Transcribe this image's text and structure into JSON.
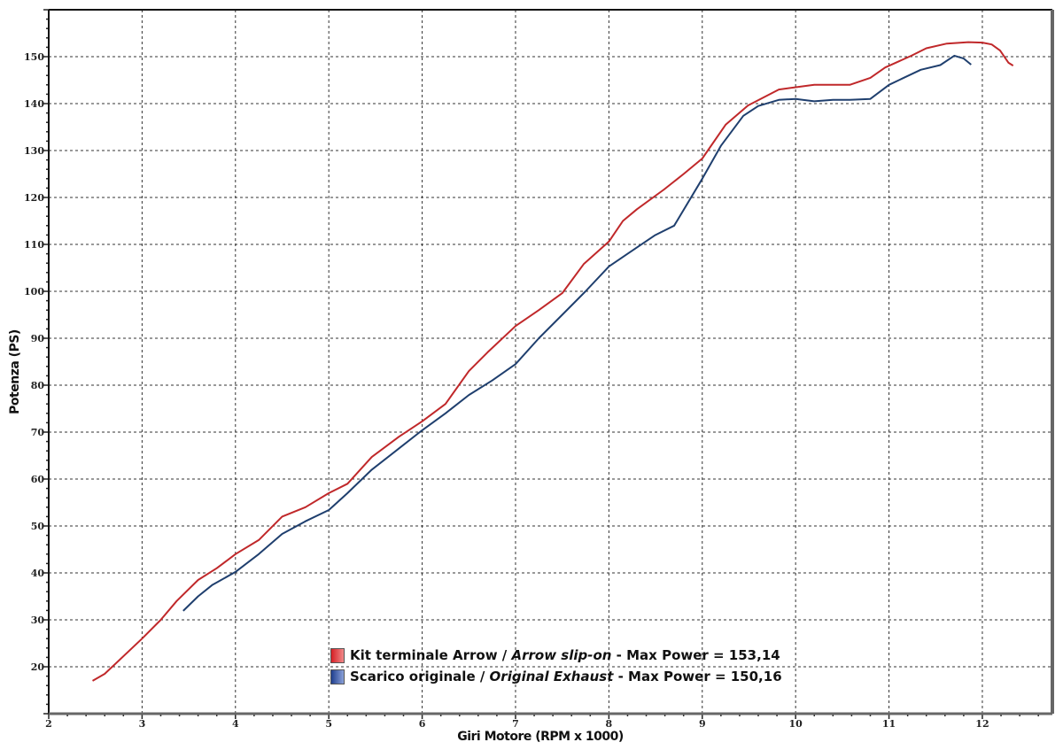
{
  "chart_data": {
    "type": "line",
    "title": "",
    "xlabel": "Giri Motore (RPM x 1000)",
    "ylabel": "Potenza (PS)",
    "xlim": [
      2,
      12.75
    ],
    "ylim": [
      10,
      160
    ],
    "xticks": [
      2,
      3,
      4,
      5,
      6,
      7,
      8,
      9,
      10,
      11,
      12
    ],
    "yticks": [
      20,
      30,
      40,
      50,
      60,
      70,
      80,
      90,
      100,
      110,
      120,
      130,
      140,
      150
    ],
    "grid": true,
    "legend_position": "bottom-center",
    "series": [
      {
        "name": "Kit terminale Arrow / Arrow slip-on - Max Power = 153,14",
        "legend_parts": [
          "Kit terminale Arrow / ",
          "Arrow slip-on",
          " - Max Power = 153,14"
        ],
        "color": "#c0282a",
        "x": [
          2.47,
          2.6,
          3.0,
          3.2,
          3.37,
          3.6,
          3.8,
          4.0,
          4.25,
          4.5,
          4.75,
          5.0,
          5.2,
          5.46,
          5.75,
          6.0,
          6.25,
          6.5,
          6.7,
          7.0,
          7.25,
          7.5,
          7.73,
          8.0,
          8.15,
          8.3,
          8.59,
          8.8,
          9.0,
          9.25,
          9.49,
          9.82,
          10.2,
          10.58,
          10.8,
          10.96,
          11.24,
          11.4,
          11.62,
          11.85,
          12.0,
          12.1,
          12.19,
          12.28,
          12.33
        ],
        "y": [
          17,
          18.5,
          26,
          30,
          34,
          38.5,
          41,
          44,
          47,
          52,
          54,
          57,
          59,
          64.7,
          69,
          72.3,
          76,
          83,
          87,
          92.6,
          96,
          99.6,
          105.8,
          110.6,
          115,
          117.5,
          121.7,
          125,
          128.3,
          135.5,
          139.6,
          143,
          144,
          144,
          145.5,
          147.7,
          150.2,
          151.8,
          152.8,
          153.1,
          153,
          152.6,
          151.3,
          148.7,
          148.1
        ]
      },
      {
        "name": "Scarico originale / Original Exhaust - Max Power = 150,16",
        "legend_parts": [
          "Scarico originale / ",
          "Original Exhaust",
          " - Max Power = 150,16"
        ],
        "color": "#1f3f6e",
        "x": [
          3.44,
          3.6,
          3.75,
          4.0,
          4.25,
          4.5,
          4.75,
          5.0,
          5.2,
          5.46,
          5.75,
          6.0,
          6.25,
          6.5,
          6.75,
          7.0,
          7.25,
          7.5,
          7.75,
          8.0,
          8.2,
          8.49,
          8.7,
          9.0,
          9.2,
          9.44,
          9.6,
          9.82,
          10.0,
          10.2,
          10.4,
          10.58,
          10.8,
          11.0,
          11.34,
          11.55,
          11.7,
          11.8,
          11.88
        ],
        "y": [
          31.9,
          35,
          37.4,
          40.2,
          44,
          48.3,
          51,
          53.4,
          57,
          62,
          66.5,
          70.4,
          74,
          77.9,
          81,
          84.5,
          90,
          95,
          100,
          105.3,
          108,
          111.9,
          114,
          124,
          131,
          137.4,
          139.5,
          140.8,
          141,
          140.5,
          140.8,
          140.8,
          141,
          144,
          147.2,
          148.2,
          150.2,
          149.6,
          148.3
        ]
      }
    ]
  }
}
